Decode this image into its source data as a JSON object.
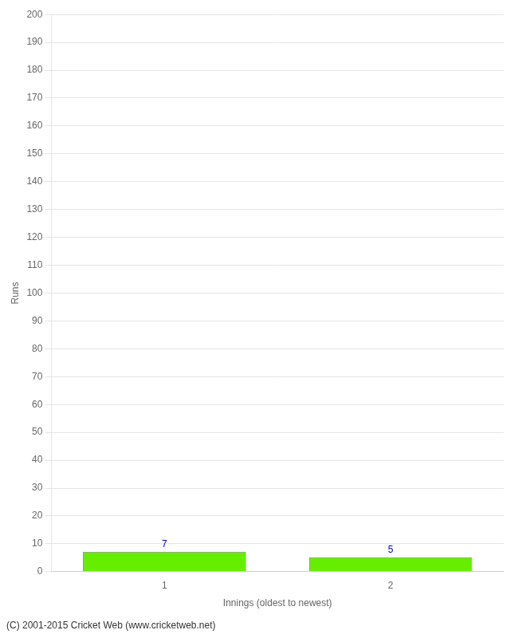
{
  "chart_data": {
    "type": "bar",
    "xlabel": "Innings (oldest to newest)",
    "ylabel": "Runs",
    "categories": [
      "1",
      "2"
    ],
    "values": [
      7,
      5
    ],
    "color": "#66ee00",
    "ylim": [
      0,
      200
    ],
    "yticks": [
      0,
      10,
      20,
      30,
      40,
      50,
      60,
      70,
      80,
      90,
      100,
      110,
      120,
      130,
      140,
      150,
      160,
      170,
      180,
      190,
      200
    ],
    "grid": true,
    "data_labels": true,
    "annotations": [
      "(C) 2001-2015 Cricket Web (www.cricketweb.net)"
    ]
  }
}
